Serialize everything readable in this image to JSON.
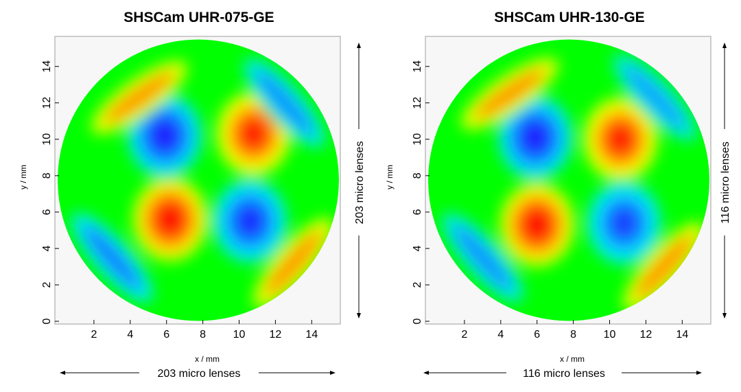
{
  "chart_data": [
    {
      "type": "heatmap",
      "title": "SHSCam UHR-075-GE",
      "xlabel": "x / mm",
      "ylabel": "y / mm",
      "xlim": [
        0,
        15.5
      ],
      "ylim": [
        0,
        15.5
      ],
      "x_ticks": [
        2,
        4,
        6,
        8,
        10,
        12,
        14
      ],
      "y_ticks": [
        0,
        2,
        4,
        6,
        8,
        10,
        12,
        14
      ],
      "x_lens_label": "203 micro lenses",
      "y_lens_label": "203 micro lenses",
      "aperture": {
        "shape": "circle",
        "center": [
          7.75,
          7.75
        ],
        "radius": 7.75
      },
      "colormap": [
        "#1a1aff",
        "#00e5ff",
        "#00ff00",
        "#ffff00",
        "#ff0000"
      ],
      "features": [
        {
          "kind": "peak",
          "x": 6.2,
          "y": 5.6,
          "level": 1.0
        },
        {
          "kind": "peak",
          "x": 10.8,
          "y": 10.3,
          "level": 0.95
        },
        {
          "kind": "valley",
          "x": 5.9,
          "y": 10.2,
          "level": -1.0
        },
        {
          "kind": "valley",
          "x": 10.6,
          "y": 5.5,
          "level": -0.95
        },
        {
          "kind": "positive-band",
          "x": 4.5,
          "y": 12.3,
          "level": 0.7
        },
        {
          "kind": "positive-band",
          "x": 13.0,
          "y": 3.2,
          "level": 0.7
        },
        {
          "kind": "negative-band",
          "x": 3.0,
          "y": 3.5,
          "level": -0.75
        },
        {
          "kind": "negative-band",
          "x": 12.5,
          "y": 12.0,
          "level": -0.7
        }
      ]
    },
    {
      "type": "heatmap",
      "title": "SHSCam UHR-130-GE",
      "xlabel": "x / mm",
      "ylabel": "y / mm",
      "xlim": [
        0,
        15.5
      ],
      "ylim": [
        0,
        15.5
      ],
      "x_ticks": [
        2,
        4,
        6,
        8,
        10,
        12,
        14
      ],
      "y_ticks": [
        0,
        2,
        4,
        6,
        8,
        10,
        12,
        14
      ],
      "x_lens_label": "116 micro lenses",
      "y_lens_label": "116 micro lenses",
      "aperture": {
        "shape": "circle",
        "center": [
          7.75,
          7.75
        ],
        "radius": 7.75
      },
      "colormap": [
        "#1a1aff",
        "#00e5ff",
        "#00ff00",
        "#ffff00",
        "#ff0000"
      ],
      "features": [
        {
          "kind": "peak",
          "x": 6.0,
          "y": 5.3,
          "level": 1.0
        },
        {
          "kind": "peak",
          "x": 10.6,
          "y": 10.0,
          "level": 0.95
        },
        {
          "kind": "valley",
          "x": 5.9,
          "y": 10.1,
          "level": -1.0
        },
        {
          "kind": "valley",
          "x": 10.8,
          "y": 5.4,
          "level": -0.9
        },
        {
          "kind": "positive-band",
          "x": 4.5,
          "y": 12.5,
          "level": 0.7
        },
        {
          "kind": "positive-band",
          "x": 13.0,
          "y": 3.0,
          "level": 0.7
        },
        {
          "kind": "negative-band",
          "x": 3.0,
          "y": 3.5,
          "level": -0.7
        },
        {
          "kind": "negative-band",
          "x": 12.5,
          "y": 12.3,
          "level": -0.65
        }
      ]
    }
  ]
}
